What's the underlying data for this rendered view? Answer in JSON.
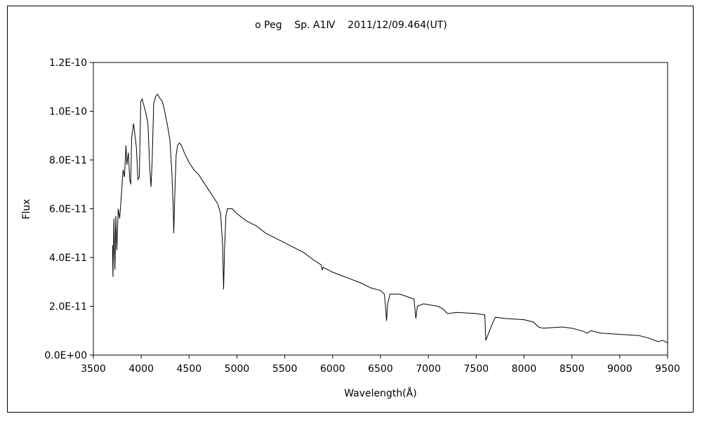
{
  "chart_data": {
    "type": "line",
    "title": "ο Peg    Sp. A1Ⅳ    2011/12/09.464(UT)",
    "xlabel": "Wavelength(Å)",
    "ylabel": "Flux",
    "xlim": [
      3500,
      9500
    ],
    "ylim": [
      0,
      1.2e-10
    ],
    "x_ticks": [
      "3500",
      "4000",
      "4500",
      "5000",
      "5500",
      "6000",
      "6500",
      "7000",
      "7500",
      "8000",
      "8500",
      "9000",
      "9500"
    ],
    "y_ticks": [
      "0.0E+00",
      "2.0E-11",
      "4.0E-11",
      "6.0E-11",
      "8.0E-11",
      "1.0E-10",
      "1.2E-10"
    ],
    "grid": false,
    "line_color": "#000000",
    "y_unit_scale": 1e-11,
    "series": [
      {
        "x": [
          3700,
          3705,
          3715,
          3725,
          3735,
          3745,
          3760,
          3775,
          3790,
          3800,
          3810,
          3825,
          3840,
          3850,
          3865,
          3880,
          3890,
          3900,
          3920,
          3935,
          3950,
          3965,
          3980,
          3995,
          4010,
          4030,
          4050,
          4070,
          4090,
          4102,
          4115,
          4130,
          4150,
          4170,
          4185,
          4200,
          4220,
          4240,
          4260,
          4280,
          4300,
          4320,
          4335,
          4340,
          4350,
          4365,
          4380,
          4400,
          4420,
          4450,
          4500,
          4550,
          4600,
          4650,
          4700,
          4750,
          4800,
          4830,
          4850,
          4861,
          4870,
          4885,
          4900,
          4950,
          5000,
          5100,
          5200,
          5300,
          5400,
          5500,
          5600,
          5700,
          5800,
          5880,
          5890,
          5900,
          6000,
          6100,
          6200,
          6300,
          6400,
          6500,
          6540,
          6555,
          6563,
          6575,
          6600,
          6700,
          6850,
          6870,
          6885,
          6950,
          7100,
          7150,
          7200,
          7300,
          7500,
          7590,
          7600,
          7620,
          7660,
          7700,
          7800,
          8000,
          8100,
          8150,
          8200,
          8400,
          8500,
          8600,
          8660,
          8700,
          8800,
          9000,
          9200,
          9300,
          9400,
          9450,
          9500
        ],
        "y": [
          4.5,
          3.2,
          5.6,
          3.5,
          5.7,
          4.3,
          6.0,
          5.6,
          6.4,
          7.0,
          7.6,
          7.3,
          8.6,
          7.8,
          8.3,
          7.2,
          7.0,
          8.9,
          9.5,
          9.0,
          8.5,
          7.2,
          7.3,
          10.4,
          10.5,
          10.2,
          9.9,
          9.5,
          7.6,
          6.9,
          8.0,
          10.3,
          10.6,
          10.7,
          10.6,
          10.5,
          10.4,
          10.1,
          9.7,
          9.3,
          8.8,
          7.5,
          6.0,
          5.0,
          6.5,
          8.2,
          8.6,
          8.7,
          8.6,
          8.3,
          7.9,
          7.6,
          7.4,
          7.1,
          6.8,
          6.5,
          6.2,
          5.8,
          4.5,
          2.7,
          4.3,
          5.7,
          6.0,
          6.0,
          5.8,
          5.5,
          5.3,
          5.0,
          4.8,
          4.6,
          4.4,
          4.2,
          3.9,
          3.7,
          3.5,
          3.6,
          3.4,
          3.25,
          3.1,
          2.95,
          2.75,
          2.65,
          2.5,
          1.9,
          1.4,
          2.1,
          2.5,
          2.5,
          2.3,
          1.5,
          2.0,
          2.1,
          2.0,
          1.9,
          1.7,
          1.75,
          1.7,
          1.65,
          0.6,
          0.8,
          1.2,
          1.55,
          1.5,
          1.45,
          1.35,
          1.15,
          1.1,
          1.15,
          1.1,
          1.0,
          0.9,
          1.0,
          0.9,
          0.85,
          0.8,
          0.7,
          0.55,
          0.6,
          0.5
        ]
      }
    ]
  }
}
